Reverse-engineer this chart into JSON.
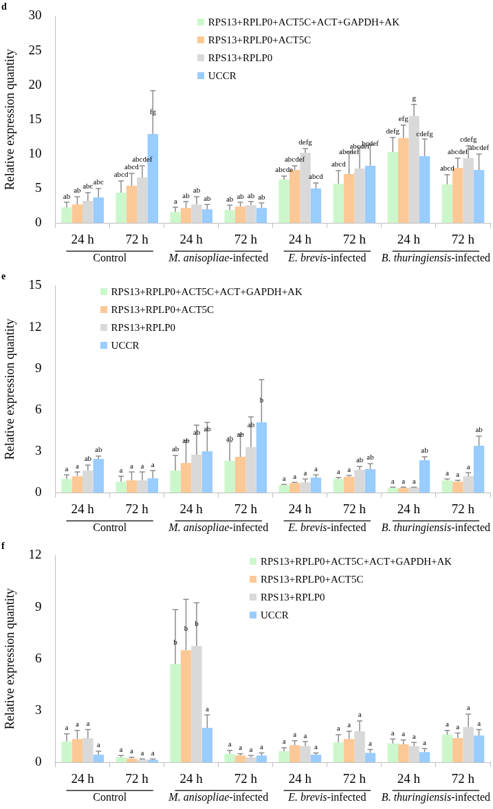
{
  "chart_data": [
    {
      "type": "bar",
      "title": "d",
      "ylabel": "Relative expression quantity",
      "categories": [
        "24 h",
        "72 h",
        "24 h",
        "72 h",
        "24 h",
        "72 h",
        "24 h",
        "72 h"
      ],
      "annotations": [
        "Control",
        "M. anisopliae-infected",
        "E. brevis-infected",
        "B. thuringiensis-infected"
      ],
      "ylim": [
        0,
        30
      ],
      "yticks": [
        0,
        5,
        10,
        15,
        20,
        25,
        30
      ],
      "legend": "top",
      "series": [
        {
          "name": "RPS13+RPLP0+ACT5C+ACT+GAPDH+AK",
          "color": "#ccf7cc",
          "values": [
            2.3,
            4.4,
            1.6,
            1.9,
            6.3,
            5.7,
            10.3,
            5.6
          ],
          "errors": [
            [
              2.3,
              3.0
            ],
            [
              4.4,
              6.1
            ],
            [
              1.6,
              2.3
            ],
            [
              1.9,
              2.6
            ],
            [
              6.3,
              6.8
            ],
            [
              5.7,
              7.6
            ],
            [
              10.3,
              12.4
            ],
            [
              5.6,
              7.0
            ]
          ],
          "value_labels": [
            "ab",
            "abcd",
            "a",
            "ab",
            "abcde",
            "abcd",
            "defg",
            "abcd"
          ]
        },
        {
          "name": "RPS13+RPLP0+ACT5C",
          "color": "#fcc896",
          "values": [
            2.7,
            5.4,
            2.2,
            2.4,
            7.7,
            7.1,
            12.3,
            8.0
          ],
          "errors": [
            [
              2.7,
              3.8
            ],
            [
              5.4,
              7.2
            ],
            [
              2.2,
              3.1
            ],
            [
              2.4,
              3.0
            ],
            [
              7.7,
              8.3
            ],
            [
              7.1,
              10.3
            ],
            [
              12.3,
              14.2
            ],
            [
              8.0,
              9.4
            ]
          ],
          "value_labels": [
            "ab",
            "abcd",
            "ab",
            "ab",
            "abcdef",
            "abcdef",
            "efg",
            "abcdef"
          ]
        },
        {
          "name": "RPS13+RPLP0",
          "color": "#d9d9d9",
          "values": [
            3.2,
            6.6,
            2.7,
            2.6,
            10.2,
            7.9,
            15.5,
            9.4
          ],
          "errors": [
            [
              3.2,
              4.4
            ],
            [
              6.6,
              8.3
            ],
            [
              2.7,
              3.8
            ],
            [
              2.6,
              3.1
            ],
            [
              10.2,
              10.8
            ],
            [
              7.9,
              11.0
            ],
            [
              15.5,
              17.2
            ],
            [
              9.4,
              11.2
            ]
          ],
          "value_labels": [
            "abc",
            "abcdef",
            "ab",
            "ab",
            "defg",
            "abcdef",
            "g",
            "cdefg"
          ]
        },
        {
          "name": "UCCR",
          "color": "#99ccff",
          "values": [
            3.7,
            12.9,
            2.0,
            2.2,
            5.0,
            8.3,
            9.7,
            7.7
          ],
          "errors": [
            [
              3.7,
              5.0
            ],
            [
              12.9,
              19.2
            ],
            [
              2.0,
              2.7
            ],
            [
              2.2,
              2.9
            ],
            [
              5.0,
              5.8
            ],
            [
              8.3,
              11.4
            ],
            [
              9.7,
              12.2
            ],
            [
              7.7,
              10.0
            ]
          ],
          "value_labels": [
            "abc",
            "fg",
            "ab",
            "ab",
            "abcd",
            "bcdef",
            "cdefg",
            "abcdef"
          ]
        }
      ]
    },
    {
      "type": "bar",
      "title": "e",
      "ylabel": "Relative expression quantity",
      "categories": [
        "24 h",
        "72 h",
        "24 h",
        "72 h",
        "24 h",
        "72 h",
        "24 h",
        "72 h"
      ],
      "annotations": [
        "Control",
        "M. anisopliae-infected",
        "E. brevis-infected",
        "B. thuringiensis-infected"
      ],
      "ylim": [
        0,
        15
      ],
      "yticks": [
        0,
        3,
        6,
        9,
        12,
        15
      ],
      "legend": "top left",
      "series": [
        {
          "name": "RPS13+RPLP0+ACT5C+ACT+GAPDH+AK",
          "color": "#ccf7cc",
          "values": [
            1.0,
            0.8,
            1.6,
            2.3,
            0.55,
            1.0,
            0.35,
            0.9
          ],
          "errors": [
            [
              1.0,
              1.3
            ],
            [
              0.8,
              1.2
            ],
            [
              1.6,
              2.7
            ],
            [
              2.3,
              3.7
            ],
            [
              0.55,
              0.6
            ],
            [
              1.0,
              1.1
            ],
            [
              0.35,
              0.4
            ],
            [
              0.9,
              1.0
            ]
          ],
          "value_labels": [
            "a",
            "a",
            "ab",
            "ab",
            "a",
            "a",
            "a",
            "a"
          ]
        },
        {
          "name": "RPS13+RPLP0+ACT5C",
          "color": "#fcc896",
          "values": [
            1.2,
            0.9,
            2.15,
            2.6,
            0.7,
            1.15,
            0.35,
            0.8
          ],
          "errors": [
            [
              1.2,
              1.5
            ],
            [
              0.9,
              1.5
            ],
            [
              2.15,
              3.8
            ],
            [
              2.6,
              4.25
            ],
            [
              0.7,
              0.75
            ],
            [
              1.15,
              1.25
            ],
            [
              0.35,
              0.4
            ],
            [
              0.8,
              0.9
            ]
          ],
          "value_labels": [
            "a",
            "a",
            "ab",
            "ab",
            "a",
            "a",
            "a",
            "a"
          ]
        },
        {
          "name": "RPS13+RPLP0",
          "color": "#d9d9d9",
          "values": [
            1.6,
            0.9,
            2.75,
            3.3,
            0.75,
            1.65,
            0.38,
            1.2
          ],
          "errors": [
            [
              1.6,
              2.0
            ],
            [
              0.9,
              1.5
            ],
            [
              2.75,
              4.9
            ],
            [
              3.3,
              5.5
            ],
            [
              0.75,
              1.0
            ],
            [
              1.65,
              1.9
            ],
            [
              0.38,
              0.4
            ],
            [
              1.2,
              1.45
            ]
          ],
          "value_labels": [
            "ab",
            "a",
            "ab",
            "ab",
            "a",
            "ab",
            "a",
            "a"
          ]
        },
        {
          "name": "UCCR",
          "color": "#99ccff",
          "values": [
            2.45,
            1.05,
            3.0,
            5.1,
            1.1,
            1.7,
            2.35,
            3.4
          ],
          "errors": [
            [
              2.45,
              2.65
            ],
            [
              1.05,
              1.6
            ],
            [
              3.0,
              5.1
            ],
            [
              5.1,
              8.2
            ],
            [
              1.1,
              1.3
            ],
            [
              1.7,
              2.1
            ],
            [
              2.35,
              2.6
            ],
            [
              3.4,
              4.1
            ]
          ],
          "value_labels": [
            "ab",
            "a",
            "ab",
            "b",
            "a",
            "ab",
            "ab",
            "ab"
          ]
        }
      ]
    },
    {
      "type": "bar",
      "title": "f",
      "ylabel": "Relative expression quantity",
      "categories": [
        "24 h",
        "72 h",
        "24 h",
        "72 h",
        "24 h",
        "72 h",
        "24 h",
        "72 h"
      ],
      "annotations": [
        "Control",
        "M. anisopliae-infected",
        "E. brevis-infected",
        "B. thuringiensis-infected"
      ],
      "ylim": [
        0,
        12
      ],
      "yticks": [
        0,
        3,
        6,
        9,
        12
      ],
      "legend": "top right",
      "series": [
        {
          "name": "RPS13+RPLP0+ACT5C+ACT+GAPDH+AK",
          "color": "#ccf7cc",
          "values": [
            1.2,
            0.3,
            5.7,
            0.5,
            0.65,
            1.15,
            1.1,
            1.6
          ],
          "errors": [
            [
              1.2,
              1.65
            ],
            [
              0.3,
              0.4
            ],
            [
              5.7,
              8.85
            ],
            [
              0.5,
              0.7
            ],
            [
              0.65,
              0.85
            ],
            [
              1.15,
              1.6
            ],
            [
              1.1,
              1.35
            ],
            [
              1.6,
              1.85
            ]
          ],
          "value_labels": [
            "a",
            "a",
            "b",
            "a",
            "a",
            "a",
            "a",
            "a"
          ]
        },
        {
          "name": "RPS13+RPLP0+ACT5C",
          "color": "#fcc896",
          "values": [
            1.35,
            0.22,
            6.5,
            0.4,
            1.0,
            1.35,
            1.05,
            1.4
          ],
          "errors": [
            [
              1.35,
              1.85
            ],
            [
              0.22,
              0.3
            ],
            [
              6.5,
              9.45
            ],
            [
              0.4,
              0.5
            ],
            [
              1.0,
              1.25
            ],
            [
              1.35,
              1.8
            ],
            [
              1.05,
              1.3
            ],
            [
              1.4,
              1.7
            ]
          ],
          "value_labels": [
            "a",
            "a",
            "b",
            "a",
            "a",
            "a",
            "a",
            "a"
          ]
        },
        {
          "name": "RPS13+RPLP0",
          "color": "#d9d9d9",
          "values": [
            1.4,
            0.17,
            6.75,
            0.3,
            0.95,
            1.8,
            0.95,
            2.05
          ],
          "errors": [
            [
              1.4,
              1.9
            ],
            [
              0.17,
              0.2
            ],
            [
              6.75,
              9.25
            ],
            [
              0.3,
              0.4
            ],
            [
              0.95,
              1.2
            ],
            [
              1.8,
              2.4
            ],
            [
              0.95,
              1.15
            ],
            [
              2.05,
              2.8
            ]
          ],
          "value_labels": [
            "a",
            "a",
            "b",
            "a",
            "a",
            "a",
            "a",
            "a"
          ]
        },
        {
          "name": "UCCR",
          "color": "#99ccff",
          "values": [
            0.45,
            0.15,
            2.0,
            0.4,
            0.45,
            0.55,
            0.6,
            1.55
          ],
          "errors": [
            [
              0.45,
              0.65
            ],
            [
              0.15,
              0.2
            ],
            [
              2.0,
              2.75
            ],
            [
              0.4,
              0.55
            ],
            [
              0.45,
              0.55
            ],
            [
              0.55,
              0.75
            ],
            [
              0.6,
              0.8
            ],
            [
              1.55,
              1.9
            ]
          ],
          "value_labels": [
            "a",
            "a",
            "a",
            "a",
            "a",
            "a",
            "a",
            "a"
          ]
        }
      ]
    }
  ]
}
